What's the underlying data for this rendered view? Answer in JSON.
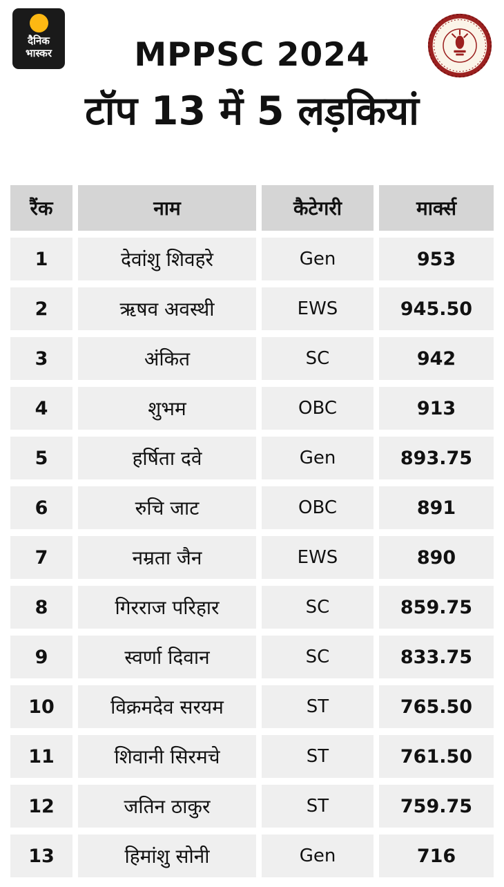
{
  "logo": {
    "line1": "दैनिक",
    "line2": "भास्कर"
  },
  "emblem": {
    "description": "madhya-pradesh-government-seal"
  },
  "chart_data": {
    "type": "table",
    "title": "MPPSC 2024",
    "subtitle": "टॉप 13 में 5 लड़कियां",
    "columns": [
      "रैंक",
      "नाम",
      "कैटेगरी",
      "मार्क्स"
    ],
    "rows": [
      {
        "rank": "1",
        "name": "देवांशु शिवहरे",
        "category": "Gen",
        "marks": "953"
      },
      {
        "rank": "2",
        "name": "ऋषव अवस्थी",
        "category": "EWS",
        "marks": "945.50"
      },
      {
        "rank": "3",
        "name": "अंकित",
        "category": "SC",
        "marks": "942"
      },
      {
        "rank": "4",
        "name": "शुभम",
        "category": "OBC",
        "marks": "913"
      },
      {
        "rank": "5",
        "name": "हर्षिता दवे",
        "category": "Gen",
        "marks": "893.75"
      },
      {
        "rank": "6",
        "name": "रुचि जाट",
        "category": "OBC",
        "marks": "891"
      },
      {
        "rank": "7",
        "name": "नम्रता जैन",
        "category": "EWS",
        "marks": "890"
      },
      {
        "rank": "8",
        "name": "गिरराज परिहार",
        "category": "SC",
        "marks": "859.75"
      },
      {
        "rank": "9",
        "name": "स्वर्णा दिवान",
        "category": "SC",
        "marks": "833.75"
      },
      {
        "rank": "10",
        "name": "विक्रमदेव सरयम",
        "category": "ST",
        "marks": "765.50"
      },
      {
        "rank": "11",
        "name": "शिवानी सिरमचे",
        "category": "ST",
        "marks": "761.50"
      },
      {
        "rank": "12",
        "name": "जतिन ठाकुर",
        "category": "ST",
        "marks": "759.75"
      },
      {
        "rank": "13",
        "name": "हिमांशु सोनी",
        "category": "Gen",
        "marks": "716"
      }
    ]
  },
  "colors": {
    "page_bg": "#ffffff",
    "header_cell_bg": "#d5d5d5",
    "data_cell_bg": "#efefef",
    "text": "#111111",
    "logo_bg": "#1a1a1a",
    "logo_sun": "#fdb813",
    "emblem_maroon": "#9c2120"
  }
}
